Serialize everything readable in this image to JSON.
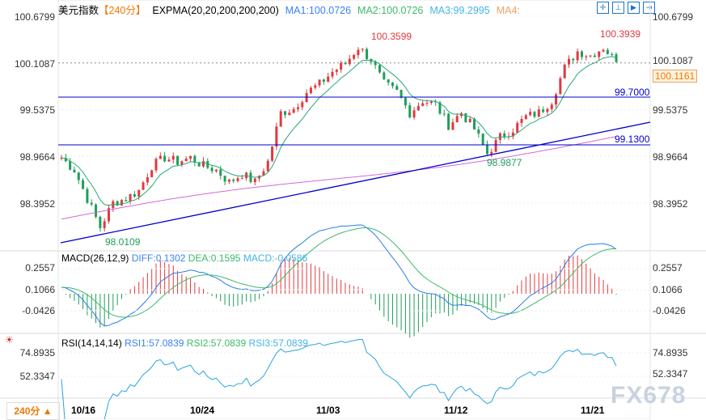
{
  "header": {
    "symbol": "美元指数",
    "period": "【240分】",
    "indicator": "EXPMA(20,20,200,200,200)",
    "ma1": "MA1:100.0726",
    "ma2": "MA2:100.0726",
    "ma3": "MA3:99.2995",
    "ma4": "MA4:"
  },
  "toolbar": [
    "crosshair",
    "range",
    "play",
    "exit"
  ],
  "price_axis": [
    "100.6799",
    "100.1087",
    "99.5375",
    "98.9664",
    "98.3952"
  ],
  "current_price": "100.1161",
  "annotations": {
    "high1": "100.3599",
    "high2": "100.3939",
    "low1": "98.0109",
    "low2": "98.9877",
    "level1": "99.7000",
    "level2": "99.1300"
  },
  "macd": {
    "title": "MACD(26,12,9)",
    "diff": "DIFF:0.1302",
    "dea": "DEA:0.1595",
    "macd": "MACD:-0.0586",
    "axis": [
      "0.2557",
      "0.1066",
      "-0.0426"
    ]
  },
  "rsi": {
    "title": "RSI(14,14,14)",
    "rsi1": "RSI1:57.0839",
    "rsi2": "RSI2:57.0839",
    "rsi3": "RSI3:57.0839",
    "axis": [
      "74.8935",
      "52.3347"
    ]
  },
  "dates": [
    "10/16",
    "10/24",
    "11/03",
    "11/12",
    "11/21"
  ],
  "period_button": "240分 ▲",
  "watermark": "FX678",
  "colors": {
    "up": "#e0393e",
    "down": "#1e9e5a",
    "ema20": "#2aa876",
    "ema200": "#d46ad6",
    "diff": "#2b7de9",
    "dea": "#3cba6a",
    "rsi": "#2aa4e0",
    "level": "#0000cc"
  },
  "chart_data": {
    "type": "candlestick",
    "ylim": [
      98.0,
      100.68
    ],
    "closes": [
      98.95,
      98.8,
      98.45,
      98.1,
      98.4,
      98.45,
      98.55,
      98.85,
      98.95,
      98.9,
      98.95,
      98.85,
      98.8,
      98.65,
      98.75,
      98.65,
      98.9,
      99.5,
      99.55,
      99.75,
      99.85,
      100.0,
      100.1,
      100.3,
      100.15,
      99.85,
      99.75,
      99.5,
      99.65,
      99.6,
      99.35,
      99.5,
      99.3,
      99.0,
      99.2,
      99.3,
      99.45,
      99.5,
      99.65,
      100.05,
      100.25,
      100.2,
      100.3,
      100.12
    ]
  }
}
